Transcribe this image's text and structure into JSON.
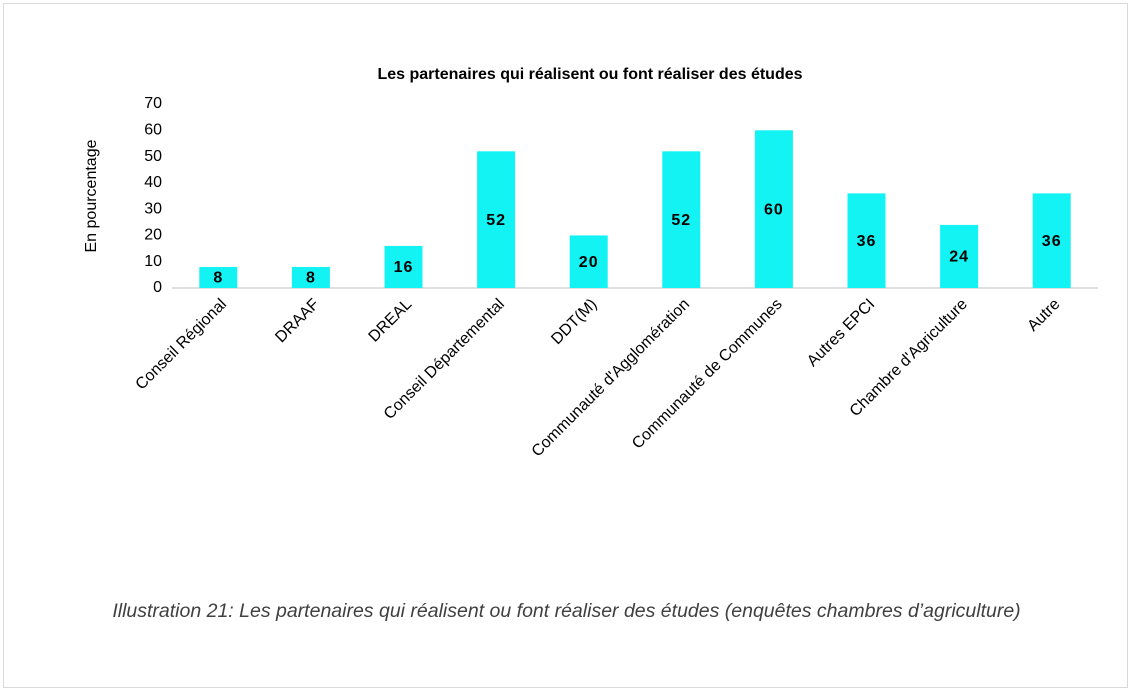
{
  "chart_data": {
    "type": "bar",
    "title": "Les partenaires qui réalisent ou font réaliser des études",
    "ylabel": "En pourcentage",
    "categories": [
      "Conseil Régional",
      "DRAAF",
      "DREAL",
      "Conseil Départemental",
      "DDT(M)",
      "Communauté d'Agglomération",
      "Communauté de Communes",
      "Autres EPCI",
      "Chambre d'Agriculture",
      "Autre"
    ],
    "values": [
      8,
      8,
      16,
      52,
      20,
      52,
      60,
      36,
      24,
      36
    ],
    "color": "#13f3f3",
    "ylim": [
      0,
      70
    ],
    "yticks": [
      0,
      10,
      20,
      30,
      40,
      50,
      60,
      70
    ]
  },
  "caption": "Illustration 21: Les partenaires qui réalisent ou font réaliser des études (enquêtes chambres d’agriculture)"
}
